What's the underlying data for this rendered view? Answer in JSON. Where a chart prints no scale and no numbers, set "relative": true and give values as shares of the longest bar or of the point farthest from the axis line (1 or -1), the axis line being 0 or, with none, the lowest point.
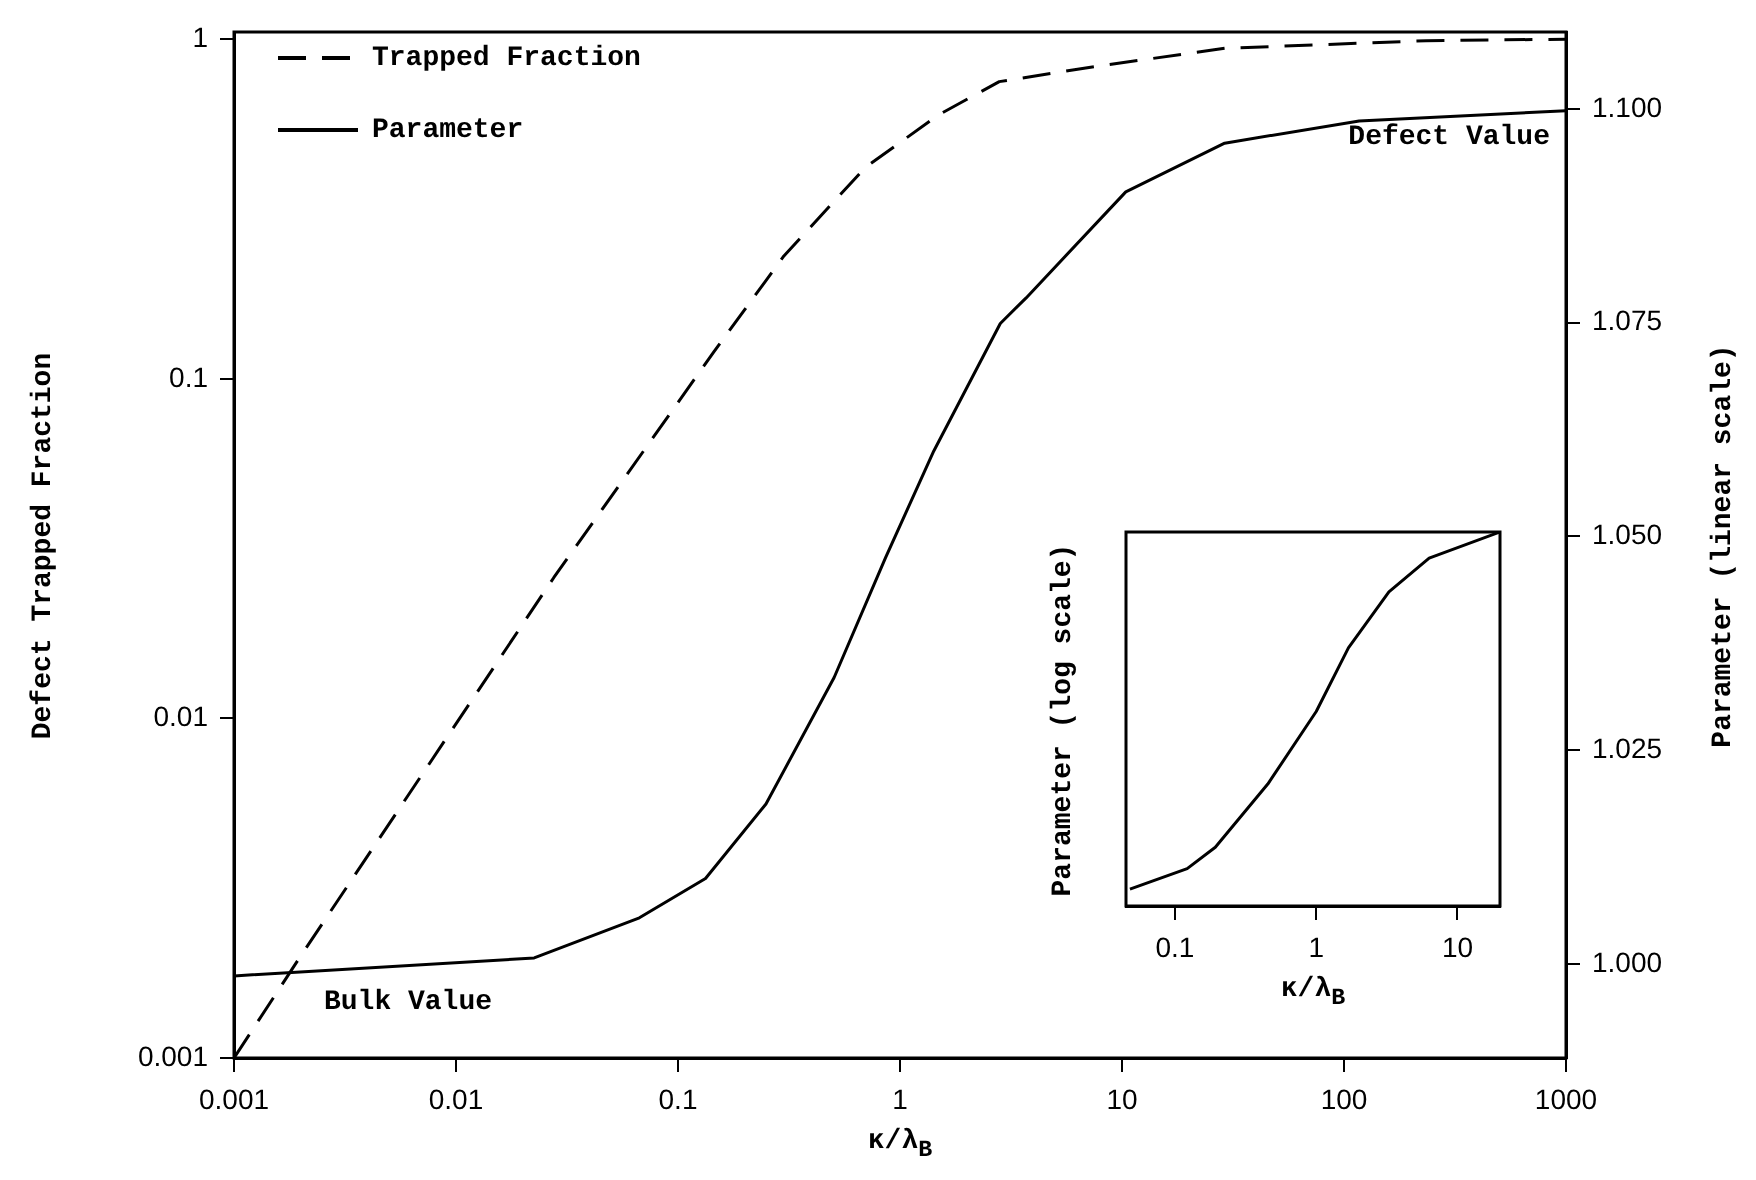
{
  "chart_data": [
    {
      "type": "line",
      "xlabel": "κ/λ$_{B}$",
      "ylabel": "Defect Trapped Fraction",
      "y2label": "Parameter (linear scale)",
      "log": "xy",
      "legend": "top left",
      "grid": false,
      "marker": "none",
      "xlim": [
        0.001,
        1000
      ],
      "xticks": [
        0.001,
        0.01,
        0.1,
        1,
        10,
        100,
        1000
      ],
      "ylim": [
        0.001,
        1.05
      ],
      "yticks": [
        0.001,
        0.01,
        0.1,
        1
      ],
      "y2lim": [
        0.989,
        1.109
      ],
      "y2ticks": [
        {
          "value": 1,
          "label": "1.000"
        },
        {
          "value": 1.025,
          "label": "1.025"
        },
        {
          "value": 1.05,
          "label": "1.050"
        },
        {
          "value": 1.075,
          "label": "1.075"
        },
        {
          "value": 1.1,
          "label": "1.100"
        }
      ],
      "series": [
        {
          "name": "Trapped Fraction",
          "color": "#000000",
          "line_style": "dashed",
          "x": [
            0.001,
            0.002,
            0.0276,
            0.145,
            0.3,
            0.7,
            1.5,
            2.8,
            7.5,
            29,
            234,
            1000
          ],
          "values": [
            0.001,
            0.002,
            0.026,
            0.12,
            0.23,
            0.42,
            0.6,
            0.75,
            0.83,
            0.94,
            0.99,
            1
          ]
        },
        {
          "name": "Parameter",
          "color": "#000000",
          "line_style": "solid",
          "axis": "y2",
          "x": [
            0.001,
            0.0225,
            0.067,
            0.133,
            0.249,
            0.505,
            0.86,
            1.42,
            2.83,
            3.7,
            10.4,
            29,
            117,
            1000
          ],
          "values": [
            0.9986,
            1.0007,
            1.0054,
            1.01,
            1.0187,
            1.0335,
            1.0475,
            1.06,
            1.0749,
            1.0779,
            1.0903,
            1.096,
            1.0986,
            1.0998
          ]
        }
      ],
      "annotations": [
        "Bulk Value",
        "Defect Value"
      ]
    },
    {
      "type": "line",
      "xlabel": "κ/λ$_{B}$",
      "ylabel": "Parameter (log scale)",
      "log": "x",
      "relative": true,
      "grid": false,
      "marker": "none",
      "xlim": [
        0.045,
        20
      ],
      "xticks": [
        0.1,
        1,
        10
      ],
      "series": [
        {
          "color": "#000000",
          "x": [
            0.048,
            0.122,
            0.193,
            0.454,
            1,
            1.69,
            3.27,
            6.3,
            20
          ],
          "values": [
            0.045,
            0.1,
            0.157,
            0.326,
            0.52,
            0.69,
            0.84,
            0.93,
            1.0
          ]
        }
      ]
    }
  ]
}
